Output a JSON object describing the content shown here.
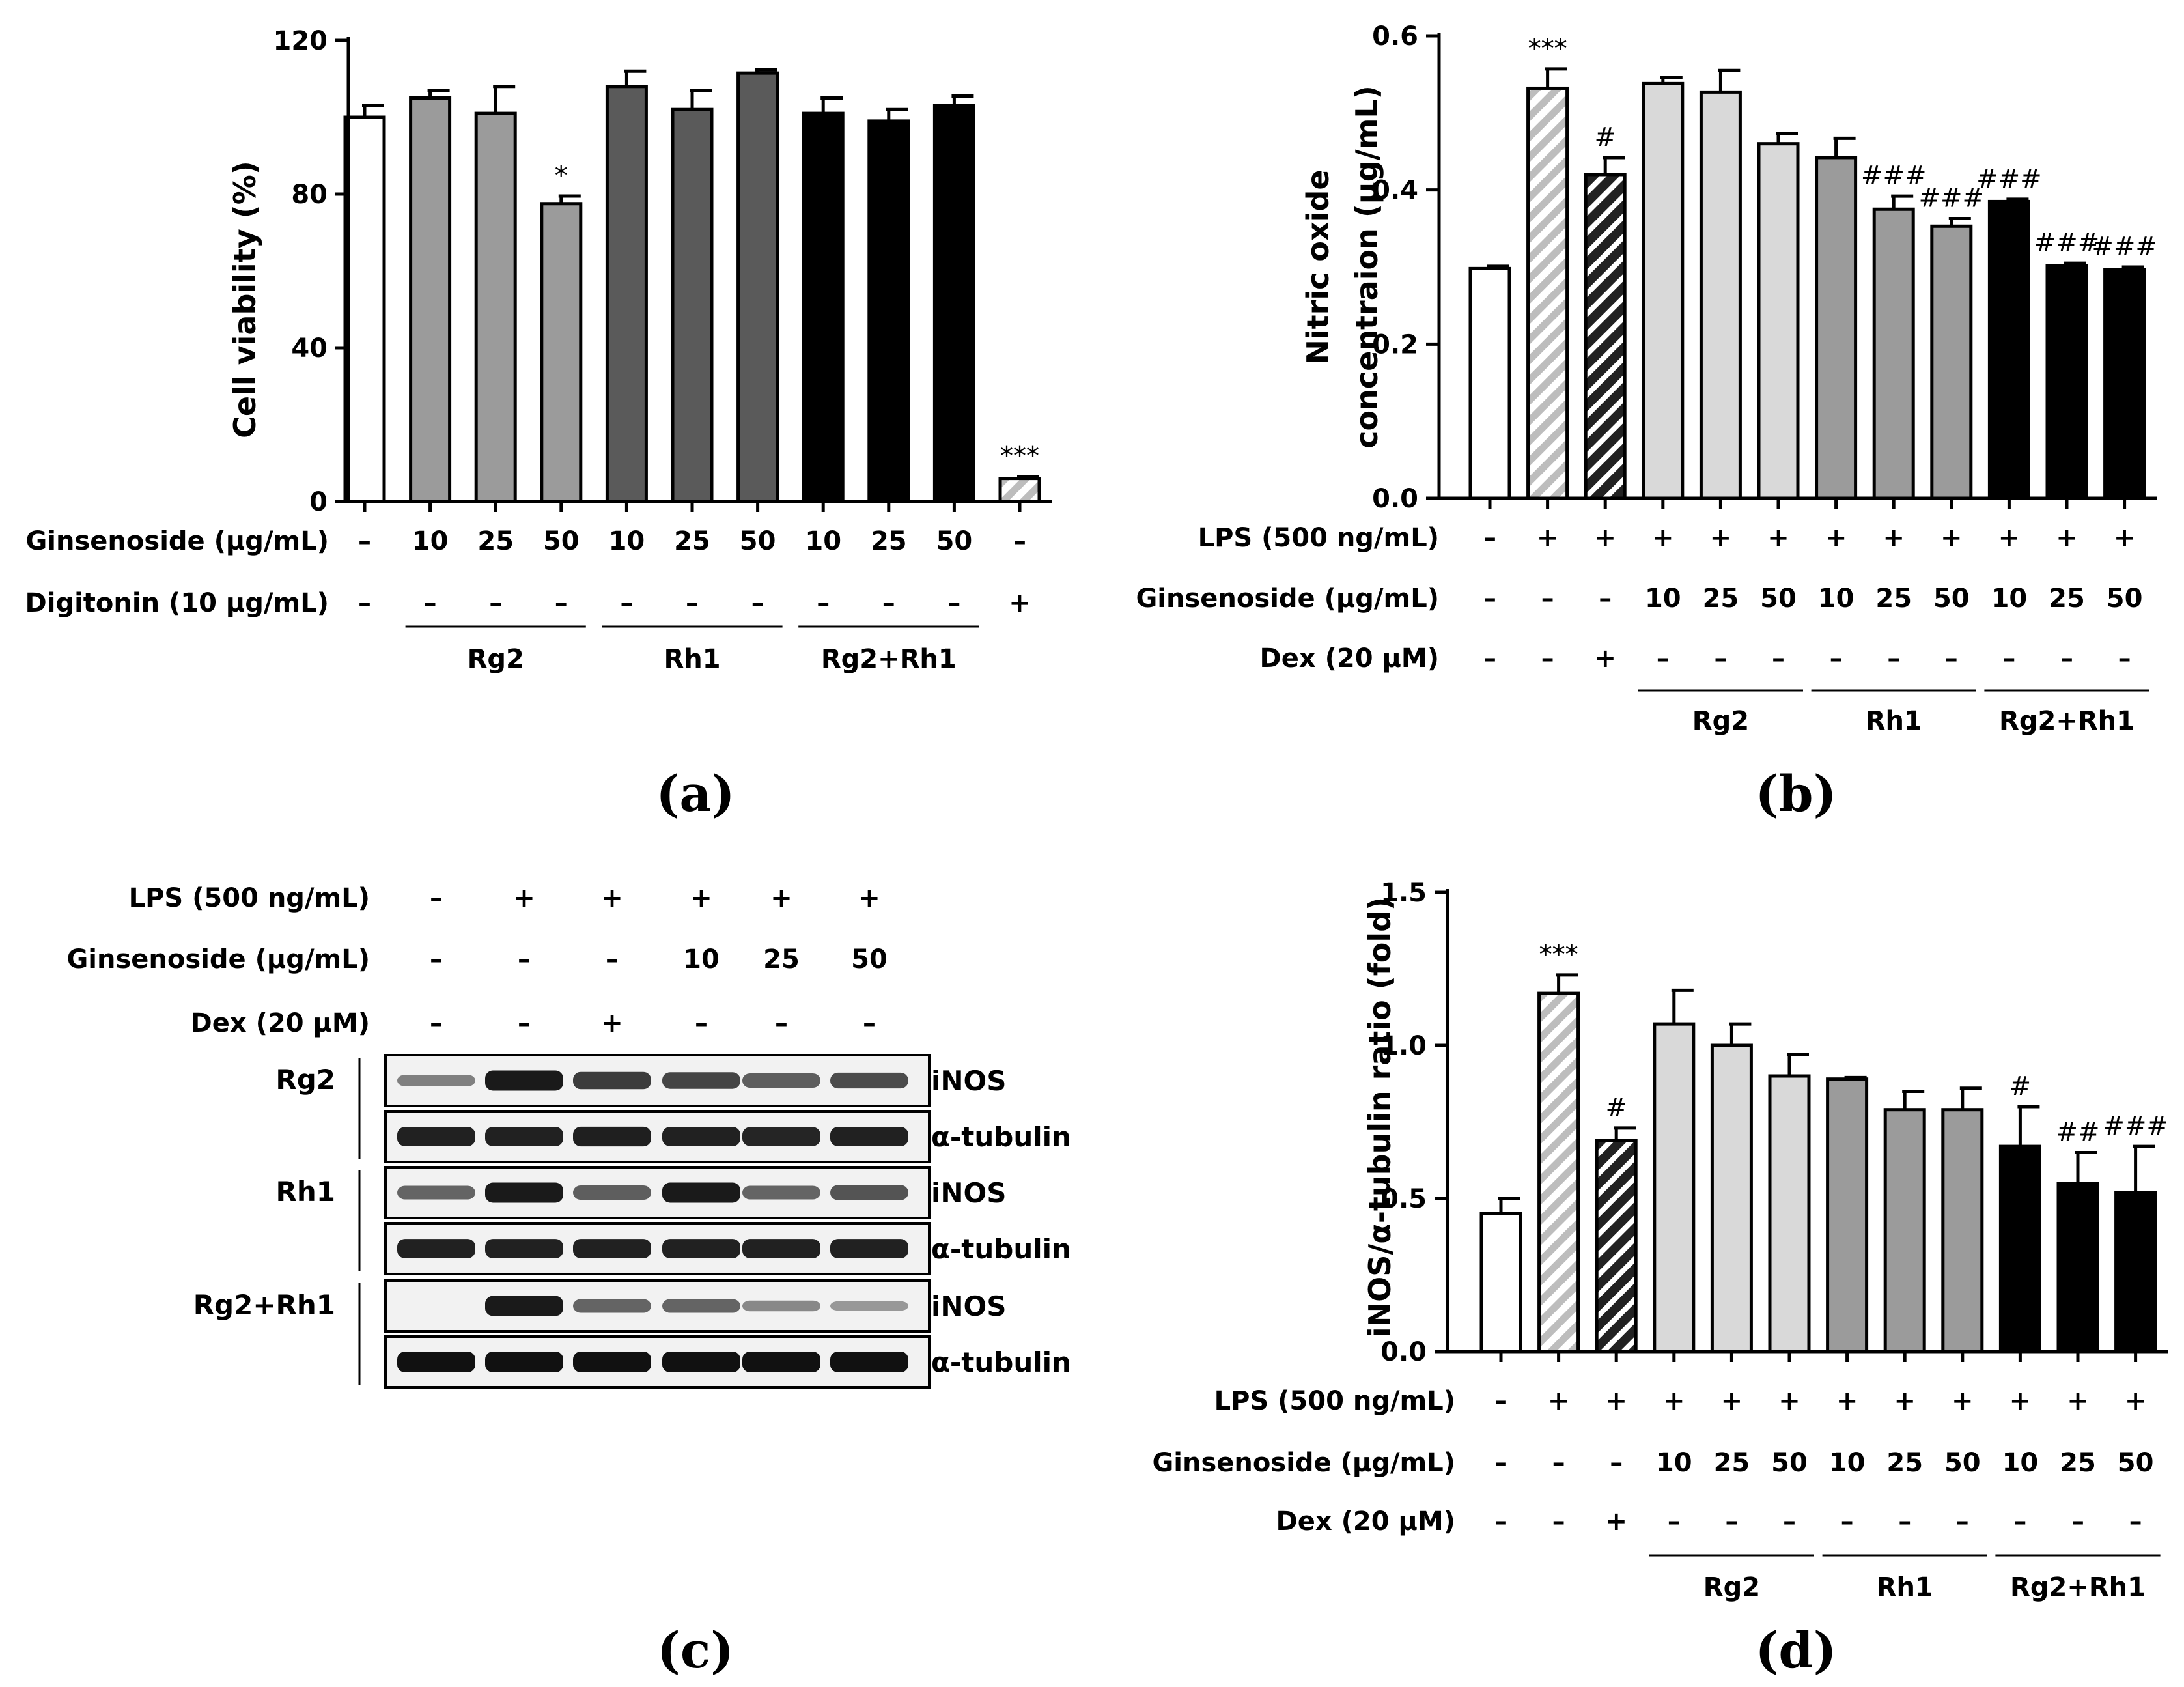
{
  "chart_data": [
    {
      "id": "a",
      "panel_label": "(a)",
      "type": "bar",
      "ylabel": "Cell viability (%)",
      "ylim": [
        0,
        120
      ],
      "yticks": [
        "0",
        "40",
        "80",
        "120"
      ],
      "values": [
        100,
        105,
        101,
        77.5,
        108,
        102,
        111.5,
        101,
        99,
        103,
        6
      ],
      "errors": [
        3,
        2,
        7,
        2,
        4,
        5,
        0.8,
        4,
        3,
        2.5,
        0.5
      ],
      "fills": [
        "#ffffff",
        "#9b9b9b",
        "#9b9b9b",
        "#9b9b9b",
        "#5a5a5a",
        "#5a5a5a",
        "#5a5a5a",
        "#000000",
        "#000000",
        "#000000",
        "hatch-light"
      ],
      "significance": [
        "",
        "",
        "",
        "*",
        "",
        "",
        "",
        "",
        "",
        "",
        "***"
      ],
      "rows": [
        {
          "label": "Ginsenoside (μg/mL)",
          "cells": [
            "–",
            "10",
            "25",
            "50",
            "10",
            "25",
            "50",
            "10",
            "25",
            "50",
            "–"
          ]
        },
        {
          "label": "Digitonin (10 μg/mL)",
          "cells": [
            "–",
            "–",
            "–",
            "–",
            "–",
            "–",
            "–",
            "–",
            "–",
            "–",
            "+"
          ]
        }
      ],
      "groups": [
        {
          "label": "Rg2",
          "from": 1,
          "to": 3
        },
        {
          "label": "Rh1",
          "from": 4,
          "to": 6
        },
        {
          "label": "Rg2+Rh1",
          "from": 7,
          "to": 9
        }
      ]
    },
    {
      "id": "b",
      "panel_label": "(b)",
      "type": "bar",
      "ylabel": "Nitric oxide concentraion (μg/mL)",
      "ylabel_lines": [
        "Nitric oxide",
        "concentraion (μg/mL)"
      ],
      "ylim": [
        0,
        0.6
      ],
      "yticks": [
        "0.0",
        "0.2",
        "0.4",
        "0.6"
      ],
      "values": [
        0.298,
        0.532,
        0.42,
        0.538,
        0.527,
        0.46,
        0.442,
        0.375,
        0.353,
        0.385,
        0.302,
        0.297
      ],
      "errors": [
        0.003,
        0.025,
        0.022,
        0.008,
        0.028,
        0.013,
        0.025,
        0.017,
        0.01,
        0.003,
        0.003,
        0.003
      ],
      "fills": [
        "#ffffff",
        "hatch-light",
        "hatch-dark",
        "#d9d9d9",
        "#d9d9d9",
        "#d9d9d9",
        "#9b9b9b",
        "#9b9b9b",
        "#9b9b9b",
        "#000000",
        "#000000",
        "#000000"
      ],
      "significance": [
        "",
        "***",
        "#",
        "",
        "",
        "",
        "",
        "###",
        "###",
        "###",
        "###",
        "###"
      ],
      "rows": [
        {
          "label": "LPS (500 ng/mL)",
          "cells": [
            "–",
            "+",
            "+",
            "+",
            "+",
            "+",
            "+",
            "+",
            "+",
            "+",
            "+",
            "+"
          ]
        },
        {
          "label": "Ginsenoside (μg/mL)",
          "cells": [
            "–",
            "–",
            "–",
            "10",
            "25",
            "50",
            "10",
            "25",
            "50",
            "10",
            "25",
            "50"
          ]
        },
        {
          "label": "Dex (20 μM)",
          "cells": [
            "–",
            "–",
            "+",
            "–",
            "–",
            "–",
            "–",
            "–",
            "–",
            "–",
            "–",
            "–"
          ]
        }
      ],
      "groups": [
        {
          "label": "Rg2",
          "from": 3,
          "to": 5
        },
        {
          "label": "Rh1",
          "from": 6,
          "to": 8
        },
        {
          "label": "Rg2+Rh1",
          "from": 9,
          "to": 11
        }
      ]
    },
    {
      "id": "d",
      "panel_label": "(d)",
      "type": "bar",
      "ylabel": "iNOS/α-tubulin ratio (fold)",
      "ylim": [
        0,
        1.5
      ],
      "yticks": [
        "0.0",
        "0.5",
        "1.0",
        "1.5"
      ],
      "values": [
        0.45,
        1.17,
        0.69,
        1.07,
        1.0,
        0.9,
        0.89,
        0.79,
        0.79,
        0.67,
        0.55,
        0.52
      ],
      "errors": [
        0.05,
        0.06,
        0.04,
        0.11,
        0.07,
        0.07,
        0.005,
        0.06,
        0.07,
        0.13,
        0.1,
        0.15
      ],
      "fills": [
        "#ffffff",
        "hatch-light",
        "hatch-dark",
        "#d9d9d9",
        "#d9d9d9",
        "#d9d9d9",
        "#9b9b9b",
        "#9b9b9b",
        "#9b9b9b",
        "#000000",
        "#000000",
        "#000000"
      ],
      "significance": [
        "",
        "***",
        "#",
        "",
        "",
        "",
        "",
        "",
        "",
        "#",
        "##",
        "###"
      ],
      "rows": [
        {
          "label": "LPS (500 ng/mL)",
          "cells": [
            "–",
            "+",
            "+",
            "+",
            "+",
            "+",
            "+",
            "+",
            "+",
            "+",
            "+",
            "+"
          ]
        },
        {
          "label": "Ginsenoside (μg/mL)",
          "cells": [
            "–",
            "–",
            "–",
            "10",
            "25",
            "50",
            "10",
            "25",
            "50",
            "10",
            "25",
            "50"
          ]
        },
        {
          "label": "Dex (20 μM)",
          "cells": [
            "–",
            "–",
            "+",
            "–",
            "–",
            "–",
            "–",
            "–",
            "–",
            "–",
            "–",
            "–"
          ]
        }
      ],
      "groups": [
        {
          "label": "Rg2",
          "from": 3,
          "to": 5
        },
        {
          "label": "Rh1",
          "from": 6,
          "to": 8
        },
        {
          "label": "Rg2+Rh1",
          "from": 9,
          "to": 11
        }
      ]
    }
  ],
  "western_blot": {
    "panel_label": "(c)",
    "rows": [
      {
        "label": "LPS (500 ng/mL)",
        "cells": [
          "–",
          "+",
          "+",
          "+",
          "+",
          "+"
        ]
      },
      {
        "label": "Ginsenoside (μg/mL)",
        "cells": [
          "–",
          "–",
          "–",
          "10",
          "25",
          "50"
        ]
      },
      {
        "label": "Dex (20 μM)",
        "cells": [
          "–",
          "–",
          "+",
          "–",
          "–",
          "–"
        ]
      }
    ],
    "groups": [
      {
        "label": "Rg2",
        "blots": [
          {
            "protein": "iNOS",
            "intensity": [
              0.35,
              0.95,
              0.75,
              0.7,
              0.55,
              0.65
            ]
          },
          {
            "protein": "α-tubulin",
            "intensity": [
              0.9,
              0.9,
              0.92,
              0.9,
              0.88,
              0.9
            ]
          }
        ]
      },
      {
        "label": "Rh1",
        "blots": [
          {
            "protein": "iNOS",
            "intensity": [
              0.5,
              0.95,
              0.55,
              0.95,
              0.5,
              0.6
            ]
          },
          {
            "protein": "α-tubulin",
            "intensity": [
              0.9,
              0.9,
              0.9,
              0.9,
              0.9,
              0.9
            ]
          }
        ]
      },
      {
        "label": "Rg2+Rh1",
        "blots": [
          {
            "protein": "iNOS",
            "intensity": [
              0.0,
              0.95,
              0.5,
              0.5,
              0.3,
              0.2
            ]
          },
          {
            "protein": "α-tubulin",
            "intensity": [
              1.0,
              1.0,
              1.0,
              1.0,
              1.0,
              1.0
            ]
          }
        ]
      }
    ]
  }
}
